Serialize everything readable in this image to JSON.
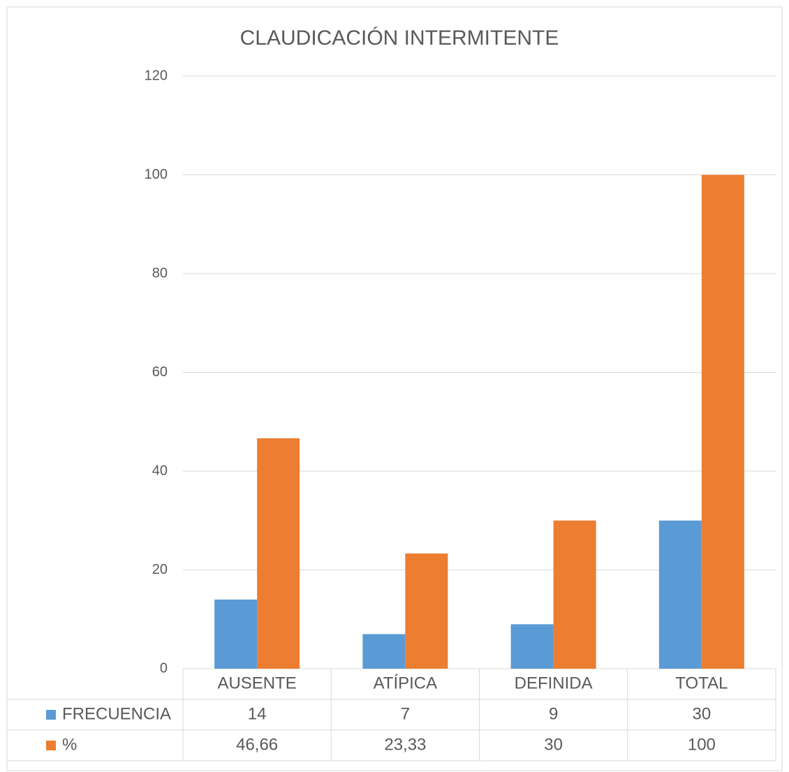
{
  "chart_data": {
    "type": "bar",
    "title": "CLAUDICACIÓN INTERMITENTE",
    "categories": [
      "AUSENTE",
      "ATÍPICA",
      "DEFINIDA",
      "TOTAL"
    ],
    "series": [
      {
        "name": "FRECUENCIA",
        "color": "#5b9bd5",
        "values": [
          14,
          7,
          9,
          30
        ]
      },
      {
        "name": "%",
        "color": "#ed7d31",
        "values": [
          46.66,
          23.33,
          30,
          100
        ],
        "value_labels": [
          "46,66",
          "23,33",
          "30",
          "100"
        ]
      }
    ],
    "ylim": [
      0,
      120
    ],
    "yticks": [
      0,
      20,
      40,
      60,
      80,
      100,
      120
    ],
    "grid": true,
    "legend": "table"
  }
}
